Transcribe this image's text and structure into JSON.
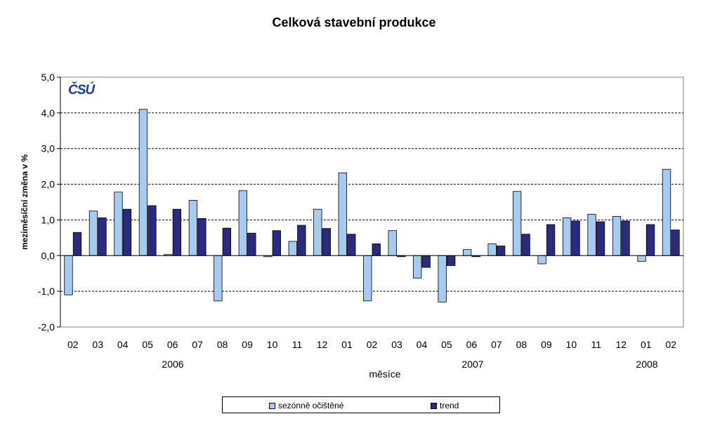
{
  "chart_data": {
    "type": "bar",
    "title": "Celková stavební produkce",
    "xlabel": "měsíce",
    "ylabel": "meziměsíční změna v %",
    "ylim": [
      -2.0,
      5.0
    ],
    "yticks": [
      "-2,0",
      "-1,0",
      "0,0",
      "1,0",
      "2,0",
      "3,0",
      "4,0",
      "5,0"
    ],
    "ytick_values": [
      -2,
      -1,
      0,
      1,
      2,
      3,
      4,
      5
    ],
    "grid": true,
    "legend_position": "bottom",
    "categories": [
      "02",
      "03",
      "04",
      "05",
      "06",
      "07",
      "08",
      "09",
      "10",
      "11",
      "12",
      "01",
      "02",
      "03",
      "04",
      "05",
      "06",
      "07",
      "08",
      "09",
      "10",
      "11",
      "12",
      "01",
      "02"
    ],
    "year_labels": [
      {
        "label": "2006",
        "start_index": 0,
        "end_index": 10
      },
      {
        "label": "2007",
        "start_index": 11,
        "end_index": 22
      },
      {
        "label": "2008",
        "start_index": 23,
        "end_index": 24
      }
    ],
    "series": [
      {
        "name": "sezónně očištěné",
        "color": "#a6caf0",
        "values": [
          -1.1,
          1.25,
          1.78,
          4.1,
          0.03,
          1.55,
          -1.27,
          1.82,
          -0.03,
          0.4,
          1.3,
          2.32,
          -1.27,
          0.7,
          -0.63,
          -1.3,
          0.17,
          0.33,
          1.8,
          -0.23,
          1.06,
          1.16,
          1.1,
          -0.16,
          2.42
        ]
      },
      {
        "name": "trend",
        "color": "#2a2a80",
        "values": [
          0.65,
          1.06,
          1.3,
          1.4,
          1.3,
          1.04,
          0.77,
          0.63,
          0.7,
          0.85,
          0.76,
          0.6,
          0.33,
          -0.03,
          -0.33,
          -0.28,
          -0.03,
          0.27,
          0.6,
          0.87,
          0.97,
          0.95,
          0.97,
          0.87,
          0.72
        ]
      }
    ]
  },
  "logo": {
    "text": "ČSÚ"
  }
}
